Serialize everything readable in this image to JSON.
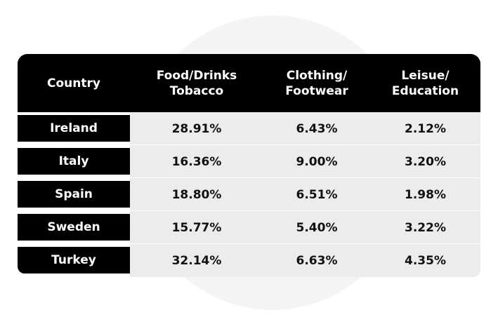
{
  "chart_data": {
    "type": "table",
    "columns": [
      "Country",
      "Food/Drinks\nTobacco",
      "Clothing/\nFootwear",
      "Leisue/\nEducation"
    ],
    "rows": [
      {
        "country": "Ireland",
        "values": [
          "28.91%",
          "6.43%",
          "2.12%"
        ]
      },
      {
        "country": "Italy",
        "values": [
          "16.36%",
          "9.00%",
          "3.20%"
        ]
      },
      {
        "country": "Spain",
        "values": [
          "18.80%",
          "6.51%",
          "1.98%"
        ]
      },
      {
        "country": "Sweden",
        "values": [
          "15.77%",
          "5.40%",
          "3.22%"
        ]
      },
      {
        "country": "Turkey",
        "values": [
          "32.14%",
          "6.63%",
          "4.35%"
        ]
      }
    ]
  },
  "colors": {
    "header_bg": "#000000",
    "header_text": "#ffffff",
    "body_bg": "#ececec",
    "body_text": "#111111"
  }
}
